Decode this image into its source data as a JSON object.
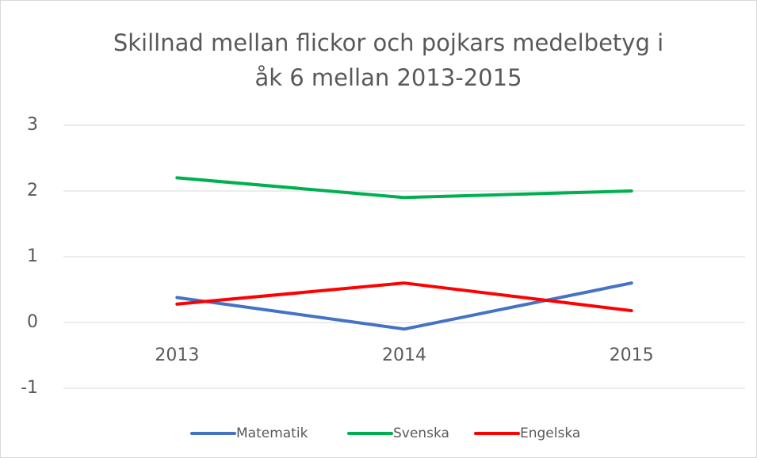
{
  "chart_data": {
    "type": "line",
    "title": [
      "Skillnad mellan flickor och pojkars medelbetyg i",
      "åk 6 mellan 2013-2015"
    ],
    "categories": [
      "2013",
      "2014",
      "2015"
    ],
    "series": [
      {
        "name": "Matematik",
        "color": "#4472c4",
        "values": [
          0.38,
          -0.1,
          0.6
        ]
      },
      {
        "name": "Svenska",
        "color": "#00b050",
        "values": [
          2.2,
          1.9,
          2.0
        ]
      },
      {
        "name": "Engelska",
        "color": "#ff0000",
        "values": [
          0.28,
          0.6,
          0.18
        ]
      }
    ],
    "ylim": [
      -1,
      3
    ],
    "yticks": [
      -1,
      0,
      1,
      2,
      3
    ],
    "grid": true,
    "legend": "bottom"
  }
}
